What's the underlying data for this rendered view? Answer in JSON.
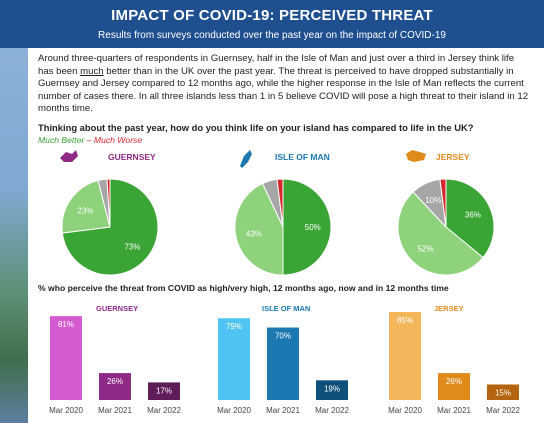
{
  "header": {
    "title": "IMPACT OF COVID-19: PERCEIVED THREAT",
    "subtitle": "Results from surveys conducted over the past year on the impact of COVID-19"
  },
  "intro": {
    "part1": "Around three-quarters of respondents in Guernsey, half in the Isle of Man and just over a third in Jersey think life has been ",
    "underlined": "much",
    "part2": " better than in the UK over the past year. The threat is perceived to have dropped substantially in Guernsey and Jersey compared to 12 months ago, while the higher response in the Isle of Man reflects the current number of cases there. In all three islands less than 1 in 5 believe COVID will pose a high threat to their island in 12 months time."
  },
  "question1": "Thinking about the past year, how do you think life on your island has compared to life in the UK?",
  "legend": {
    "better": "Much Better",
    "separator": " – ",
    "worse": "Much Worse"
  },
  "question2": "% who perceive the threat from COVID as high/very high, 12 months ago, now and in 12 months time",
  "colors": {
    "header": "#1f4f8f",
    "much_better": "#3aa535",
    "better": "#8ed27c",
    "neutral": "#a6a6a6",
    "much_worse": "#d9272e",
    "guernsey_bars": [
      "#d45ad0",
      "#8e2a86",
      "#5e1c58"
    ],
    "isle_of_man_bars": [
      "#4fc3f1",
      "#1b78b0",
      "#0d4f78"
    ],
    "jersey_bars": [
      "#f3b65a",
      "#e08a1a",
      "#b4640e"
    ]
  },
  "chart_data": [
    {
      "type": "pie",
      "island": "GUERNSEY",
      "icon": "guernsey-map-icon",
      "slices": [
        {
          "category": "much_better",
          "value": 73,
          "label": "73%"
        },
        {
          "category": "better",
          "value": 23,
          "label": "23%"
        },
        {
          "category": "neutral",
          "value": 3,
          "label": ""
        },
        {
          "category": "much_worse",
          "value": 1,
          "label": ""
        }
      ]
    },
    {
      "type": "pie",
      "island": "ISLE OF MAN",
      "icon": "isle-of-man-map-icon",
      "slices": [
        {
          "category": "much_better",
          "value": 50,
          "label": "50%"
        },
        {
          "category": "better",
          "value": 43,
          "label": "43%"
        },
        {
          "category": "neutral",
          "value": 5,
          "label": ""
        },
        {
          "category": "much_worse",
          "value": 2,
          "label": ""
        }
      ]
    },
    {
      "type": "pie",
      "island": "JERSEY",
      "icon": "jersey-map-icon",
      "slices": [
        {
          "category": "much_better",
          "value": 36,
          "label": "36%"
        },
        {
          "category": "better",
          "value": 52,
          "label": "52%"
        },
        {
          "category": "neutral",
          "value": 10,
          "label": "10%"
        },
        {
          "category": "much_worse",
          "value": 2,
          "label": ""
        }
      ]
    },
    {
      "type": "bar",
      "island": "GUERNSEY",
      "categories": [
        "Mar 2020",
        "Mar 2021",
        "Mar 2022"
      ],
      "values": [
        81,
        26,
        17
      ],
      "labels": [
        "81%",
        "26%",
        "17%"
      ],
      "ylim": [
        0,
        85
      ]
    },
    {
      "type": "bar",
      "island": "ISLE OF MAN",
      "categories": [
        "Mar 2020",
        "Mar 2021",
        "Mar 2022"
      ],
      "values": [
        79,
        70,
        19
      ],
      "labels": [
        "79%",
        "70%",
        "19%"
      ],
      "ylim": [
        0,
        85
      ]
    },
    {
      "type": "bar",
      "island": "JERSEY",
      "categories": [
        "Mar 2020",
        "Mar 2021",
        "Mar 2022"
      ],
      "values": [
        85,
        26,
        15
      ],
      "labels": [
        "85%",
        "26%",
        "15%"
      ],
      "ylim": [
        0,
        85
      ]
    }
  ]
}
